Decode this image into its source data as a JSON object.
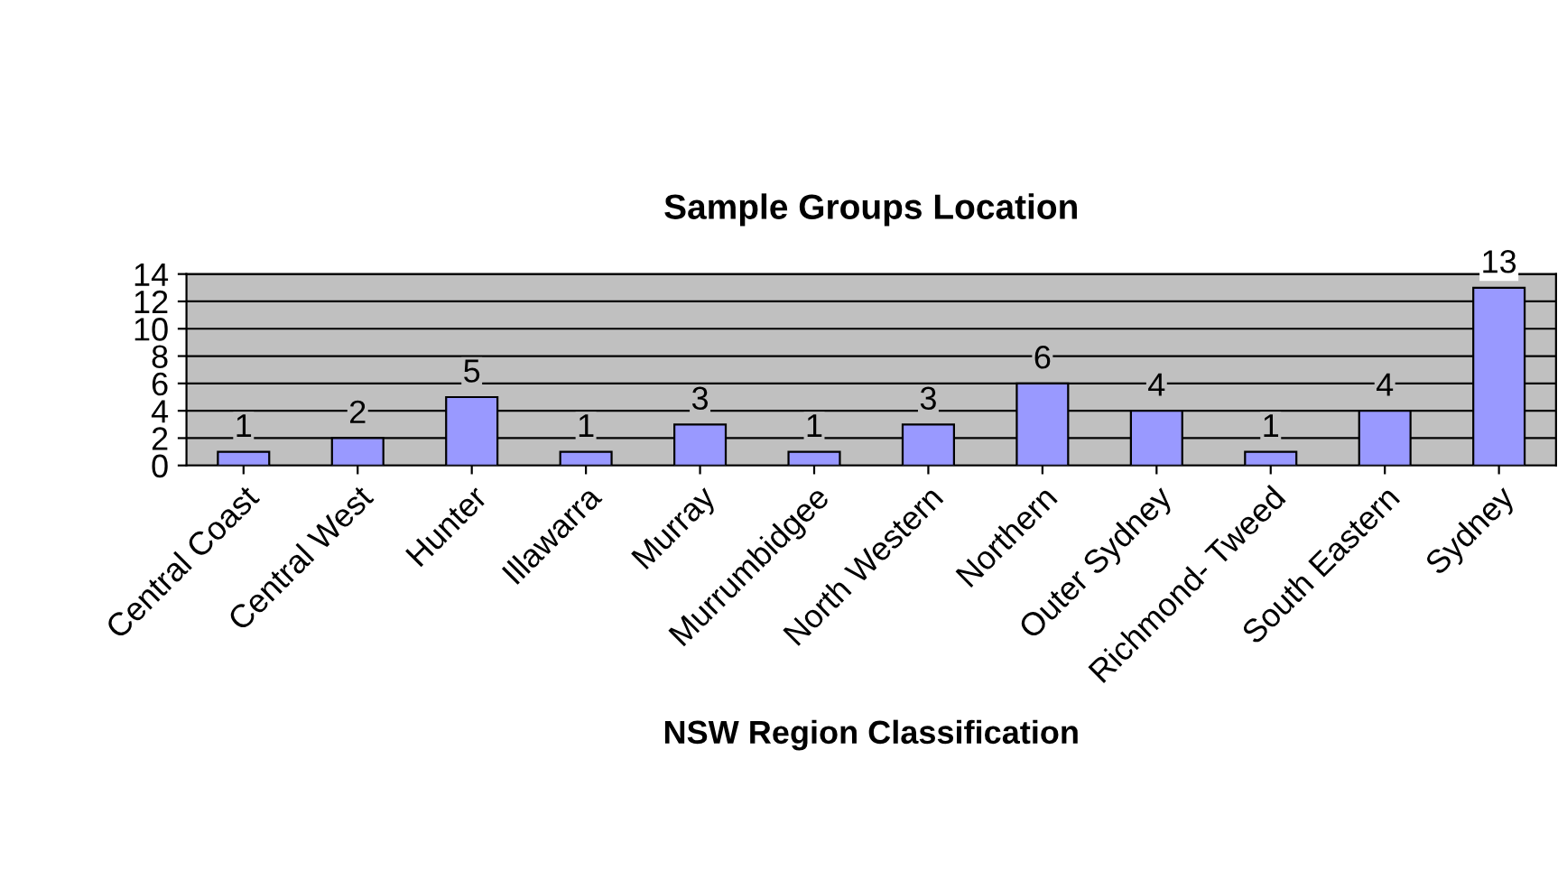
{
  "chart_data": {
    "type": "bar",
    "title": "Sample Groups Location",
    "xlabel": "NSW Region Classification",
    "categories": [
      "Central Coast",
      "Central West",
      "Hunter",
      "Illawarra",
      "Murray",
      "Murrumbidgee",
      "North Western",
      "Northern",
      "Outer Sydney",
      "Richmond- Tweed",
      "South Eastern",
      "Sydney"
    ],
    "values": [
      1,
      2,
      5,
      1,
      3,
      1,
      3,
      6,
      4,
      1,
      4,
      13
    ],
    "color": "#9999ff",
    "ylim": [
      0,
      14
    ],
    "yticks": [
      0,
      2,
      4,
      6,
      8,
      10,
      12,
      14
    ],
    "grid": "y",
    "data_labels": true,
    "legend": false
  }
}
